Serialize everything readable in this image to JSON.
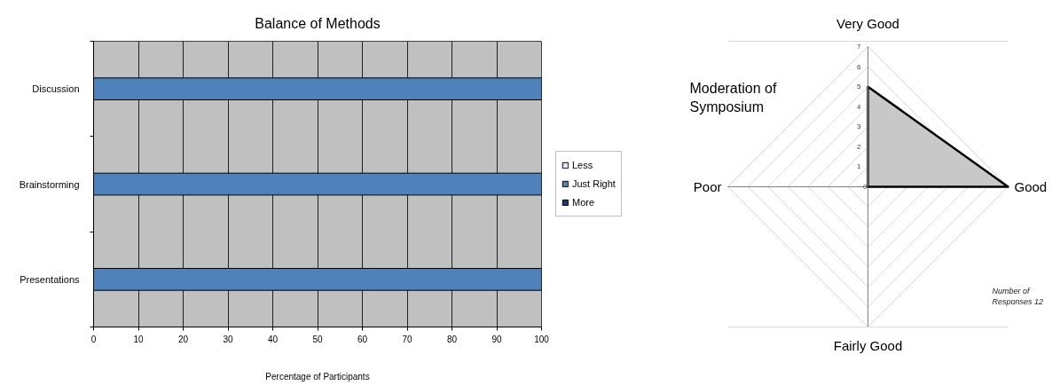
{
  "chart_data": [
    {
      "type": "bar",
      "orientation": "horizontal",
      "stacked": true,
      "title": "Balance of Methods",
      "xlabel": "Percentage of Participants",
      "categories": [
        "Discussion",
        "Brainstorming",
        "Presentations"
      ],
      "series": [
        {
          "name": "Less",
          "color": "#dbe3f4",
          "values": [
            0,
            0,
            0
          ]
        },
        {
          "name": "Just Right",
          "color": "#4f81bd",
          "values": [
            100,
            100,
            100
          ]
        },
        {
          "name": "More",
          "color": "#1f3a5f",
          "values": [
            0,
            0,
            0
          ]
        }
      ],
      "xlim": [
        0,
        100
      ],
      "xticks": [
        0,
        10,
        20,
        30,
        40,
        50,
        60,
        70,
        80,
        90,
        100
      ],
      "grid": "x",
      "legend": "right"
    },
    {
      "type": "radar",
      "title": "Moderation of Symposium",
      "categories": [
        "Very Good",
        "Good",
        "Fairly Good",
        "Poor"
      ],
      "series": [
        {
          "color": "#c8c8c8",
          "values": [
            5,
            7,
            0,
            0
          ]
        }
      ],
      "ylim": [
        0,
        7
      ],
      "yticks": [
        0,
        1,
        2,
        3,
        4,
        5,
        6,
        7
      ],
      "grid": true,
      "annotations": [
        "Number of Responses 12"
      ]
    }
  ]
}
